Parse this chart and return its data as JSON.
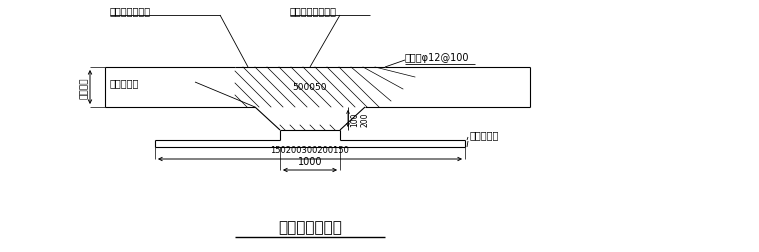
{
  "title": "底板后浇带形式",
  "bg_color": "#ffffff",
  "labels": {
    "water_stop": "遇水膨胀止水条",
    "post_cast": "后浇微膨胀混凝土",
    "mesh": "快易收口网",
    "rebar": "加强筋φ12@100",
    "cushion": "混凝土垫层",
    "thickness": "底板厚度",
    "dim_center": "500050",
    "dim_bottom": "150200300200150",
    "dim_1000": "1000",
    "dim_notch": "100\n200"
  },
  "fonts": [
    "SimSun",
    "STSong",
    "NSimSun",
    "WenQuanYi Micro Hei",
    "DejaVu Sans"
  ]
}
